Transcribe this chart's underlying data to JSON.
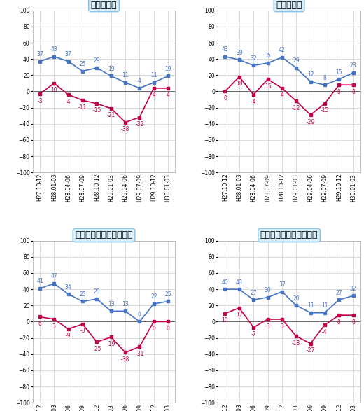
{
  "x_labels": [
    "H27.10-12",
    "H28.01-03",
    "H28.04-06",
    "H28.07-09",
    "H28.10-12",
    "H29.01-03",
    "H29.04-06",
    "H29.07-09",
    "H29.10-12",
    "H30.01-03"
  ],
  "charts": [
    {
      "title": "総受注戸数",
      "blue": [
        37,
        43,
        37,
        25,
        29,
        19,
        11,
        4,
        11,
        19
      ],
      "red": [
        -3,
        10,
        -4,
        -11,
        -15,
        -21,
        -38,
        -32,
        4,
        4
      ]
    },
    {
      "title": "総受注金額",
      "blue": [
        43,
        39,
        32,
        35,
        42,
        29,
        12,
        8,
        15,
        23
      ],
      "red": [
        0,
        18,
        -4,
        15,
        4,
        -12,
        -29,
        -15,
        8,
        8
      ]
    },
    {
      "title": "戸建て注文住宅受注戸数",
      "blue": [
        41,
        47,
        34,
        25,
        28,
        13,
        13,
        0,
        22,
        25
      ],
      "red": [
        6,
        3,
        -9,
        -3,
        -25,
        -19,
        -38,
        -31,
        0,
        0
      ]
    },
    {
      "title": "戸建て注文住宅受注金額",
      "blue": [
        40,
        40,
        27,
        30,
        37,
        20,
        11,
        11,
        27,
        32
      ],
      "red": [
        10,
        17,
        -7,
        3,
        3,
        -18,
        -27,
        -4,
        8,
        8
      ]
    }
  ],
  "blue_color": "#4472c4",
  "red_color": "#c0004b",
  "title_bg_color": "#daeef8",
  "title_border_color": "#85c1e9",
  "grid_color": "#cccccc",
  "ylim": [
    -100,
    100
  ],
  "yticks": [
    -100,
    -80,
    -60,
    -40,
    -20,
    0,
    20,
    40,
    60,
    80,
    100
  ],
  "blue_label_color": "#4472c4",
  "red_label_color": "#c0004b",
  "fontsize_data": 5.5,
  "fontsize_title": 9,
  "fontsize_tick": 5.5
}
